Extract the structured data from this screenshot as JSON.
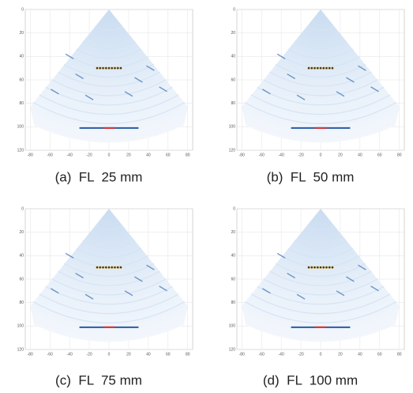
{
  "xticks": [
    -80,
    -60,
    -40,
    -20,
    0,
    20,
    40,
    60,
    80
  ],
  "yticks": [
    0,
    20,
    40,
    60,
    80,
    100,
    120
  ],
  "xlim": [
    -85,
    85
  ],
  "ylim": [
    0,
    120
  ],
  "panels": [
    {
      "caption": "(a)  FL  25 mm"
    },
    {
      "caption": "(b)  FL  50 mm"
    },
    {
      "caption": "(c)  FL  75 mm"
    },
    {
      "caption": "(d)  FL  100 mm"
    }
  ]
}
